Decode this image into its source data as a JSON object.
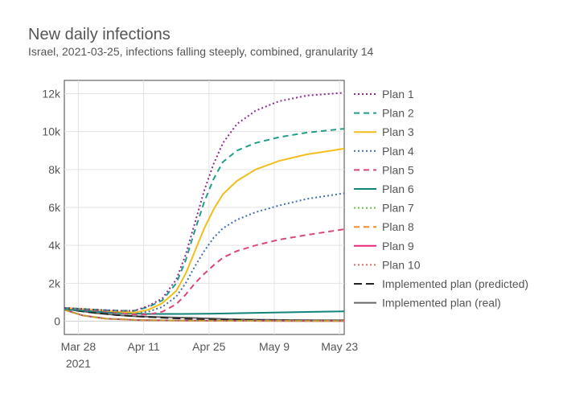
{
  "header": {
    "title": "New daily infections",
    "subtitle": "Israel, 2021-03-25, infections falling steeply, combined, granularity 14"
  },
  "chart_data": {
    "type": "line",
    "title": "New daily infections",
    "subtitle": "Israel, 2021-03-25, infections falling steeply, combined, granularity 14",
    "xlabel": "",
    "ylabel": "",
    "x_range": [
      "2021-03-25",
      "2021-05-24"
    ],
    "y_range": [
      -700,
      12700
    ],
    "grid": true,
    "legend_position": "right",
    "x_ticks": [
      {
        "date": "2021-03-28",
        "label": "Mar 28",
        "label2": "2021"
      },
      {
        "date": "2021-04-11",
        "label": "Apr 11"
      },
      {
        "date": "2021-04-25",
        "label": "Apr 25"
      },
      {
        "date": "2021-05-09",
        "label": "May 9"
      },
      {
        "date": "2021-05-23",
        "label": "May 23"
      }
    ],
    "y_ticks": [
      {
        "value": 0,
        "label": "0"
      },
      {
        "value": 2000,
        "label": "2k"
      },
      {
        "value": 4000,
        "label": "4k"
      },
      {
        "value": 6000,
        "label": "6k"
      },
      {
        "value": 8000,
        "label": "8k"
      },
      {
        "value": 10000,
        "label": "10k"
      },
      {
        "value": 12000,
        "label": "12k"
      }
    ],
    "series": [
      {
        "name": "Plan 1",
        "color": "#8e2c8e",
        "dash": "dot",
        "points": [
          [
            "2021-03-25",
            700
          ],
          [
            "2021-04-01",
            600
          ],
          [
            "2021-04-06",
            550
          ],
          [
            "2021-04-09",
            550
          ],
          [
            "2021-04-12",
            800
          ],
          [
            "2021-04-15",
            1200
          ],
          [
            "2021-04-18",
            2200
          ],
          [
            "2021-04-20",
            3500
          ],
          [
            "2021-04-22",
            5200
          ],
          [
            "2021-04-24",
            6900
          ],
          [
            "2021-04-26",
            8300
          ],
          [
            "2021-04-28",
            9400
          ],
          [
            "2021-05-01",
            10400
          ],
          [
            "2021-05-05",
            11100
          ],
          [
            "2021-05-10",
            11600
          ],
          [
            "2021-05-16",
            11900
          ],
          [
            "2021-05-24",
            12050
          ]
        ]
      },
      {
        "name": "Plan 2",
        "color": "#1f9e89",
        "dash": "dash",
        "points": [
          [
            "2021-03-25",
            700
          ],
          [
            "2021-04-01",
            600
          ],
          [
            "2021-04-06",
            550
          ],
          [
            "2021-04-09",
            550
          ],
          [
            "2021-04-12",
            750
          ],
          [
            "2021-04-15",
            1100
          ],
          [
            "2021-04-18",
            2000
          ],
          [
            "2021-04-20",
            3200
          ],
          [
            "2021-04-22",
            4800
          ],
          [
            "2021-04-24",
            6300
          ],
          [
            "2021-04-26",
            7500
          ],
          [
            "2021-04-28",
            8400
          ],
          [
            "2021-05-01",
            9000
          ],
          [
            "2021-05-05",
            9400
          ],
          [
            "2021-05-10",
            9700
          ],
          [
            "2021-05-16",
            9950
          ],
          [
            "2021-05-24",
            10150
          ]
        ]
      },
      {
        "name": "Plan 3",
        "color": "#f2be1a",
        "dash": "solid",
        "points": [
          [
            "2021-03-25",
            700
          ],
          [
            "2021-04-01",
            600
          ],
          [
            "2021-04-06",
            500
          ],
          [
            "2021-04-09",
            450
          ],
          [
            "2021-04-12",
            600
          ],
          [
            "2021-04-15",
            950
          ],
          [
            "2021-04-18",
            1600
          ],
          [
            "2021-04-20",
            2500
          ],
          [
            "2021-04-22",
            3700
          ],
          [
            "2021-04-24",
            4900
          ],
          [
            "2021-04-26",
            5900
          ],
          [
            "2021-04-28",
            6700
          ],
          [
            "2021-05-01",
            7400
          ],
          [
            "2021-05-05",
            8000
          ],
          [
            "2021-05-10",
            8450
          ],
          [
            "2021-05-16",
            8800
          ],
          [
            "2021-05-24",
            9100
          ]
        ]
      },
      {
        "name": "Plan 4",
        "color": "#3f6fb0",
        "dash": "dot",
        "points": [
          [
            "2021-03-25",
            700
          ],
          [
            "2021-04-01",
            600
          ],
          [
            "2021-04-06",
            500
          ],
          [
            "2021-04-09",
            450
          ],
          [
            "2021-04-12",
            500
          ],
          [
            "2021-04-15",
            750
          ],
          [
            "2021-04-18",
            1300
          ],
          [
            "2021-04-20",
            2000
          ],
          [
            "2021-04-22",
            2900
          ],
          [
            "2021-04-24",
            3700
          ],
          [
            "2021-04-26",
            4400
          ],
          [
            "2021-04-28",
            4900
          ],
          [
            "2021-05-01",
            5350
          ],
          [
            "2021-05-05",
            5750
          ],
          [
            "2021-05-10",
            6100
          ],
          [
            "2021-05-16",
            6450
          ],
          [
            "2021-05-24",
            6750
          ]
        ]
      },
      {
        "name": "Plan 5",
        "color": "#d9467a",
        "dash": "dash",
        "points": [
          [
            "2021-03-25",
            700
          ],
          [
            "2021-04-01",
            550
          ],
          [
            "2021-04-06",
            450
          ],
          [
            "2021-04-09",
            350
          ],
          [
            "2021-04-12",
            350
          ],
          [
            "2021-04-15",
            500
          ],
          [
            "2021-04-18",
            900
          ],
          [
            "2021-04-20",
            1400
          ],
          [
            "2021-04-22",
            2000
          ],
          [
            "2021-04-24",
            2500
          ],
          [
            "2021-04-26",
            2950
          ],
          [
            "2021-04-28",
            3350
          ],
          [
            "2021-05-01",
            3700
          ],
          [
            "2021-05-05",
            4000
          ],
          [
            "2021-05-10",
            4300
          ],
          [
            "2021-05-16",
            4550
          ],
          [
            "2021-05-24",
            4850
          ]
        ]
      },
      {
        "name": "Plan 6",
        "color": "#12847a",
        "dash": "solid",
        "points": [
          [
            "2021-03-25",
            650
          ],
          [
            "2021-04-01",
            500
          ],
          [
            "2021-04-06",
            420
          ],
          [
            "2021-04-12",
            380
          ],
          [
            "2021-04-19",
            380
          ],
          [
            "2021-04-26",
            400
          ],
          [
            "2021-05-03",
            430
          ],
          [
            "2021-05-10",
            460
          ],
          [
            "2021-05-17",
            490
          ],
          [
            "2021-05-24",
            520
          ]
        ]
      },
      {
        "name": "Plan 7",
        "color": "#6cc04a",
        "dash": "dot",
        "points": [
          [
            "2021-03-25",
            600
          ],
          [
            "2021-03-29",
            300
          ],
          [
            "2021-04-03",
            130
          ],
          [
            "2021-04-10",
            60
          ],
          [
            "2021-04-20",
            30
          ],
          [
            "2021-05-01",
            20
          ],
          [
            "2021-05-24",
            10
          ]
        ]
      },
      {
        "name": "Plan 8",
        "color": "#f58b27",
        "dash": "dash",
        "points": [
          [
            "2021-03-25",
            600
          ],
          [
            "2021-03-29",
            300
          ],
          [
            "2021-04-03",
            130
          ],
          [
            "2021-04-10",
            60
          ],
          [
            "2021-04-20",
            30
          ],
          [
            "2021-05-01",
            20
          ],
          [
            "2021-05-24",
            10
          ]
        ]
      },
      {
        "name": "Plan 9",
        "color": "#e5287a",
        "dash": "solid",
        "points": [
          [
            "2021-03-25",
            600
          ],
          [
            "2021-03-29",
            300
          ],
          [
            "2021-04-03",
            130
          ],
          [
            "2021-04-10",
            60
          ],
          [
            "2021-04-20",
            30
          ],
          [
            "2021-05-01",
            20
          ],
          [
            "2021-05-24",
            10
          ]
        ]
      },
      {
        "name": "Plan 10",
        "color": "#e06a6a",
        "dash": "dot",
        "points": [
          [
            "2021-03-25",
            600
          ],
          [
            "2021-03-29",
            300
          ],
          [
            "2021-04-03",
            130
          ],
          [
            "2021-04-10",
            60
          ],
          [
            "2021-04-20",
            30
          ],
          [
            "2021-05-01",
            20
          ],
          [
            "2021-05-24",
            10
          ]
        ]
      },
      {
        "name": "Implemented plan (predicted)",
        "color": "#222222",
        "dash": "longdash",
        "points": [
          [
            "2021-03-25",
            650
          ],
          [
            "2021-03-30",
            480
          ],
          [
            "2021-04-05",
            330
          ],
          [
            "2021-04-12",
            220
          ],
          [
            "2021-04-19",
            140
          ],
          [
            "2021-04-26",
            90
          ],
          [
            "2021-05-03",
            60
          ],
          [
            "2021-05-10",
            40
          ],
          [
            "2021-05-17",
            25
          ],
          [
            "2021-05-24",
            15
          ]
        ]
      },
      {
        "name": "Implemented plan (real)",
        "color": "#666666",
        "dash": "solid",
        "points": [
          [
            "2021-03-25",
            650
          ],
          [
            "2021-03-28",
            550
          ],
          [
            "2021-04-01",
            420
          ],
          [
            "2021-04-05",
            330
          ],
          [
            "2021-04-09",
            260
          ],
          [
            "2021-04-13",
            230
          ],
          [
            "2021-04-17",
            200
          ],
          [
            "2021-04-21",
            180
          ],
          [
            "2021-04-25",
            150
          ],
          [
            "2021-04-29",
            110
          ],
          [
            "2021-05-03",
            90
          ],
          [
            "2021-05-08",
            70
          ],
          [
            "2021-05-13",
            60
          ],
          [
            "2021-05-18",
            55
          ],
          [
            "2021-05-24",
            50
          ]
        ]
      }
    ]
  }
}
